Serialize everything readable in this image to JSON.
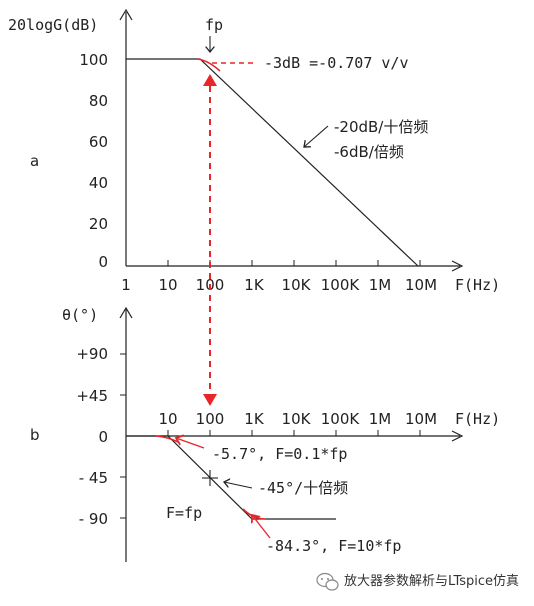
{
  "top_chart": {
    "panel_label": "a",
    "y_axis_title": "20logG(dB)",
    "x_axis_title": "F(Hz)",
    "y_ticks": [
      "100",
      "80",
      "60",
      "40",
      "20",
      "0"
    ],
    "x_ticks": [
      "1",
      "10",
      "100",
      "1K",
      "10K",
      "100K",
      "1M",
      "10M"
    ],
    "fp_label": "fp",
    "annotation_3db": "-3dB =-0.707 v/v",
    "slope_label_1": "-20dB/十倍频",
    "slope_label_2": "-6dB/倍频",
    "colors": {
      "line": "#222222",
      "marker": "#e8262a"
    }
  },
  "bottom_chart": {
    "panel_label": "b",
    "y_axis_title": "θ(°)",
    "x_axis_title": "F(Hz)",
    "y_ticks": [
      "+90",
      "+45",
      "0",
      "- 45",
      "- 90"
    ],
    "x_ticks": [
      "10",
      "100",
      "1K",
      "10K",
      "100K",
      "1M",
      "10M"
    ],
    "annotation_low": "-5.7°, F=0.1*fp",
    "annotation_mid": "-45°/十倍频",
    "annotation_fp": "F=fp",
    "annotation_high": "-84.3°, F=10*fp"
  },
  "watermark": {
    "icon": "wechat-icon",
    "text": "放大器参数解析与LTspice仿真"
  }
}
